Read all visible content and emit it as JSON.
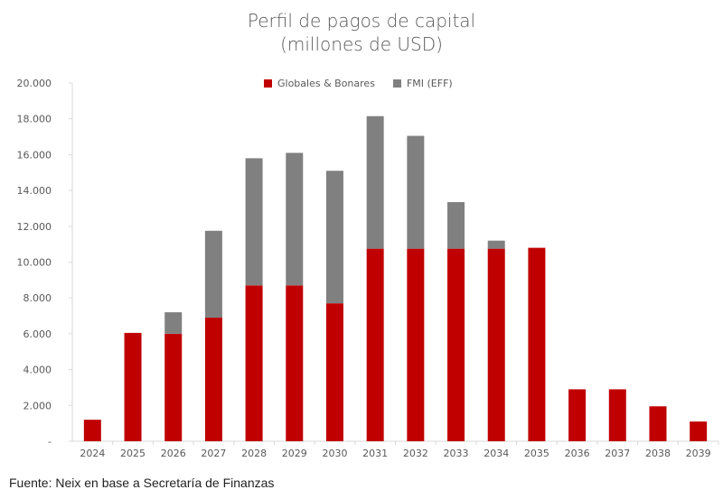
{
  "chart_data": {
    "type": "bar",
    "stacked": true,
    "title": "Perfil de pagos de capital",
    "subtitle": "(millones de USD)",
    "categories": [
      "2024",
      "2025",
      "2026",
      "2027",
      "2028",
      "2029",
      "2030",
      "2031",
      "2032",
      "2033",
      "2034",
      "2035",
      "2036",
      "2037",
      "2038",
      "2039"
    ],
    "series": [
      {
        "name": "Globales & Bonares",
        "color": "#c00000",
        "values": [
          1200,
          6050,
          6000,
          6900,
          8700,
          8700,
          7700,
          10750,
          10750,
          10750,
          10750,
          10800,
          2900,
          2900,
          1950,
          1100
        ]
      },
      {
        "name": "FMI (EFF)",
        "color": "#808080",
        "values": [
          0,
          0,
          1200,
          4850,
          7100,
          7400,
          7400,
          7400,
          6300,
          2600,
          450,
          0,
          0,
          0,
          0,
          0
        ]
      }
    ],
    "ylim": [
      0,
      20000
    ],
    "yticks": [
      "-",
      "2.000",
      "4.000",
      "6.000",
      "8.000",
      "10.000",
      "12.000",
      "14.000",
      "16.000",
      "18.000",
      "20.000"
    ],
    "legend_position": "top-center",
    "grid": false
  },
  "source": "Fuente: Neix en base a Secretaría de Finanzas"
}
